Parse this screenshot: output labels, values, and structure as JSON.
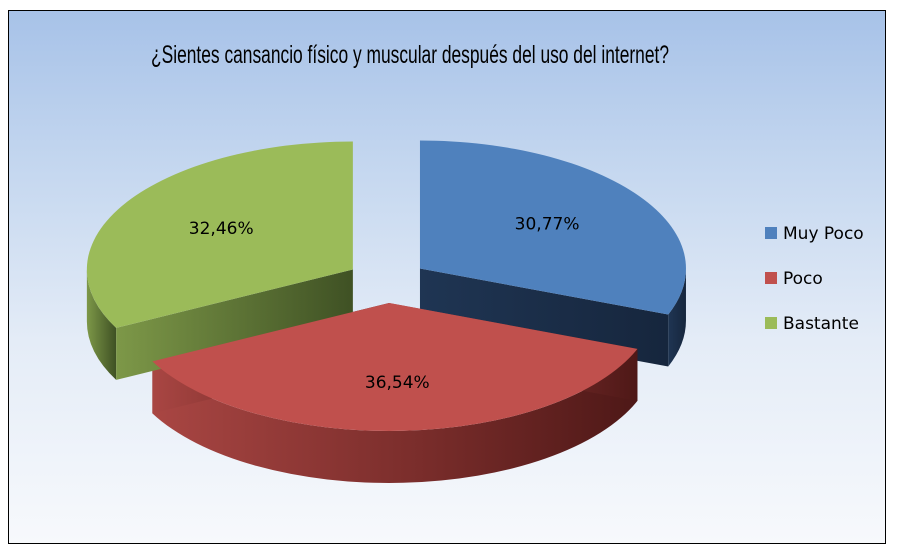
{
  "chart_data": {
    "type": "pie",
    "title": "¿Sientes cansancio físico y muscular después del  uso del internet?",
    "categories": [
      "Muy Poco",
      "Poco",
      "Bastante"
    ],
    "values": [
      30.77,
      36.54,
      32.46
    ],
    "labels": [
      "30,77%",
      "36,54%",
      "32,46%"
    ],
    "colors": [
      "#4f81bd",
      "#c0504d",
      "#9bbb59"
    ],
    "exploded": true,
    "three_d": true,
    "legend_position": "right"
  }
}
